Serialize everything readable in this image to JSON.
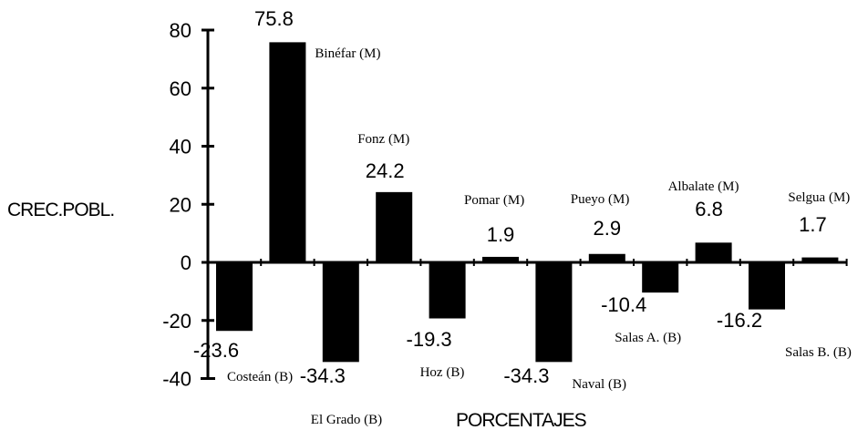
{
  "chart_data": {
    "type": "bar",
    "categories": [
      "Costeán (B)",
      "Binéfar (M)",
      "El Grado (B)",
      "Fonz (M)",
      "Hoz (B)",
      "Pomar (M)",
      "Naval (B)",
      "Pueyo (M)",
      "Salas A. (B)",
      "Albalate (M)",
      "Salas B. (B)",
      "Selgua (M)"
    ],
    "values": [
      -23.6,
      75.8,
      -34.3,
      24.2,
      -19.3,
      1.9,
      -34.3,
      2.9,
      -10.4,
      6.8,
      -16.2,
      1.7
    ],
    "value_labels": [
      "-23.6",
      "75.8",
      "-34.3",
      "24.2",
      "-19.3",
      "1.9",
      "-34.3",
      "2.9",
      "-10.4",
      "6.8",
      "-16.2",
      "1.7"
    ],
    "ylabel": "CREC.POBL.",
    "xlabel": "PORCENTAJES",
    "ylim": [
      -40,
      80
    ],
    "yticks": [
      80,
      60,
      40,
      20,
      0,
      -20,
      -40
    ],
    "ytick_labels": [
      "80",
      "60",
      "40",
      "20",
      "0",
      "-20",
      "-40"
    ],
    "bar_color": "#000000",
    "grid": false
  }
}
